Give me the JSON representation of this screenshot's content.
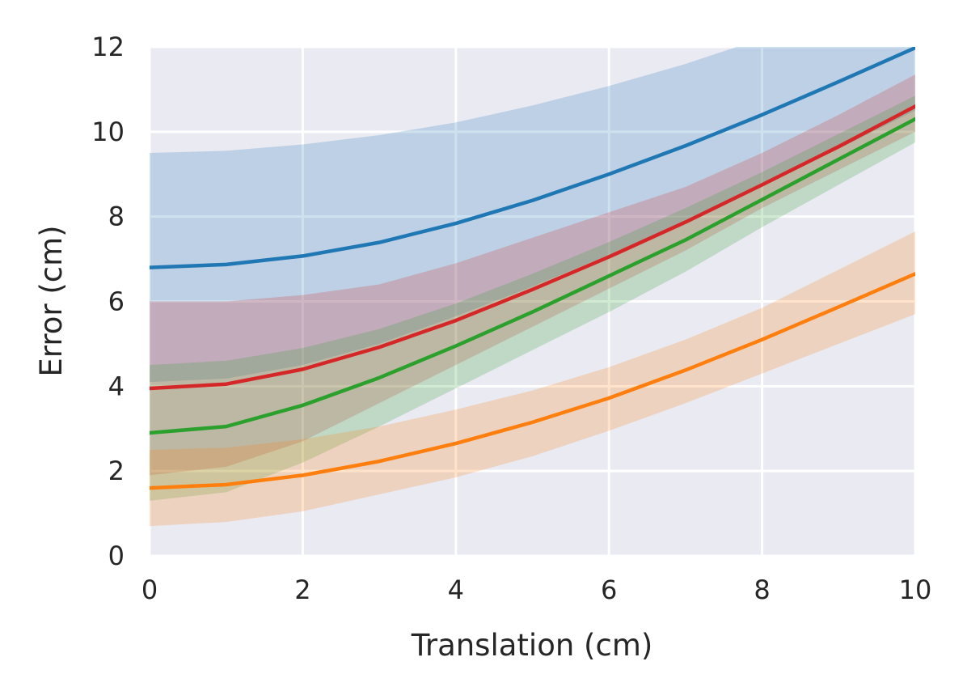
{
  "chart_data": {
    "type": "line",
    "title": "",
    "xlabel": "Translation (cm)",
    "ylabel": "Error (cm)",
    "xlim": [
      0,
      10
    ],
    "ylim": [
      0,
      12
    ],
    "xticks": [
      0,
      2,
      4,
      6,
      8,
      10
    ],
    "yticks": [
      0,
      2,
      4,
      6,
      8,
      10,
      12
    ],
    "xtick_labels": [
      "0",
      "2",
      "4",
      "6",
      "8",
      "10"
    ],
    "ytick_labels": [
      "0",
      "2",
      "4",
      "6",
      "8",
      "10",
      "12"
    ],
    "grid": true,
    "legend": "none",
    "background": "#eaeaf2",
    "grid_color": "#ffffff",
    "x": [
      0,
      1,
      2,
      3,
      4,
      5,
      6,
      7,
      8,
      9,
      10
    ],
    "series": [
      {
        "color": "#1f77b4",
        "values": [
          6.8,
          6.87,
          7.07,
          7.39,
          7.84,
          8.38,
          9.0,
          9.67,
          10.4,
          11.18,
          11.98
        ],
        "lower": [
          4.1,
          4.18,
          4.5,
          5.0,
          5.65,
          6.35,
          7.1,
          7.9,
          8.75,
          9.6,
          10.5
        ],
        "upper": [
          9.5,
          9.55,
          9.7,
          9.92,
          10.22,
          10.62,
          11.08,
          11.6,
          12.2,
          12.9,
          13.6
        ]
      },
      {
        "color": "#d62728",
        "values": [
          3.95,
          4.05,
          4.4,
          4.92,
          5.55,
          6.28,
          7.05,
          7.87,
          8.75,
          9.65,
          10.6
        ],
        "lower": [
          1.9,
          2.1,
          2.7,
          3.6,
          4.5,
          5.4,
          6.3,
          7.2,
          8.2,
          9.1,
          10.0
        ],
        "upper": [
          6.0,
          6.0,
          6.15,
          6.4,
          6.9,
          7.5,
          8.1,
          8.7,
          9.5,
          10.4,
          11.35
        ]
      },
      {
        "color": "#2ca02c",
        "values": [
          2.9,
          3.05,
          3.55,
          4.2,
          4.95,
          5.75,
          6.6,
          7.45,
          8.4,
          9.35,
          10.3
        ],
        "lower": [
          1.3,
          1.5,
          2.2,
          3.05,
          3.95,
          4.85,
          5.75,
          6.7,
          7.75,
          8.75,
          9.75
        ],
        "upper": [
          4.5,
          4.6,
          4.9,
          5.35,
          5.95,
          6.65,
          7.4,
          8.2,
          9.05,
          9.95,
          10.85
        ]
      },
      {
        "color": "#ff7f0e",
        "values": [
          1.6,
          1.68,
          1.9,
          2.23,
          2.65,
          3.15,
          3.72,
          4.38,
          5.1,
          5.87,
          6.65
        ],
        "lower": [
          0.7,
          0.8,
          1.05,
          1.45,
          1.85,
          2.35,
          2.95,
          3.6,
          4.3,
          5.0,
          5.7
        ],
        "upper": [
          2.5,
          2.55,
          2.75,
          3.05,
          3.45,
          3.9,
          4.45,
          5.1,
          5.85,
          6.75,
          7.65
        ]
      }
    ]
  }
}
